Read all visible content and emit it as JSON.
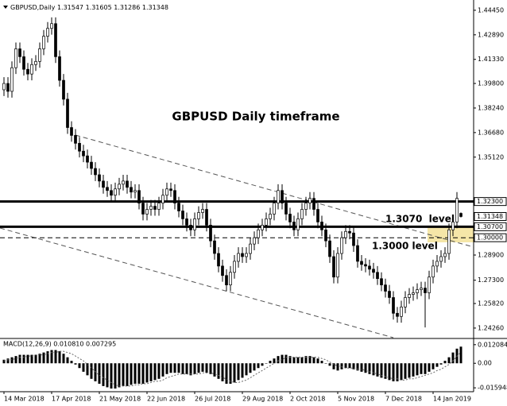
{
  "chart_data": {
    "type": "candlestick",
    "symbol": "GBPUSD,Daily",
    "annotations": [
      "GBPUSD Daily timeframe",
      "1.3070  level",
      "1.3000 level"
    ],
    "categories": [
      "14 Mar 2018",
      "17 Apr 2018",
      "21 May 2018",
      "22 Jun 2018",
      "26 Jul 2018",
      "29 Aug 2018",
      "2 Oct 2018",
      "5 Nov 2018",
      "7 Dec 2018",
      "14 Jan 2019"
    ],
    "ylim": [
      1.2365,
      1.4485
    ],
    "yticks": [
      {
        "value": 1.4445,
        "label": "1.44450"
      },
      {
        "value": 1.4289,
        "label": "1.42890"
      },
      {
        "value": 1.4133,
        "label": "1.41330"
      },
      {
        "value": 1.398,
        "label": "1.39800"
      },
      {
        "value": 1.3824,
        "label": "1.38240"
      },
      {
        "value": 1.3668,
        "label": "1.36680"
      },
      {
        "value": 1.3512,
        "label": "1.35120"
      },
      {
        "value": 1.289,
        "label": "1.28900"
      },
      {
        "value": 1.273,
        "label": "1.27300"
      },
      {
        "value": 1.2582,
        "label": "1.25820"
      },
      {
        "value": 1.2426,
        "label": "1.24260"
      }
    ],
    "levels": [
      {
        "value": 1.323,
        "label": "1.32300",
        "style": "solid"
      },
      {
        "value": 1.307,
        "label": "1.30700",
        "style": "solid"
      },
      {
        "value": 1.3,
        "label": "1.30000",
        "style": "dashed"
      }
    ],
    "up_color": "#ffffff",
    "down_color": "#000000",
    "ohlc": [
      [
        1.394,
        1.402,
        1.39,
        1.398
      ],
      [
        1.398,
        1.402,
        1.389,
        1.393
      ],
      [
        1.393,
        1.412,
        1.389,
        1.408
      ],
      [
        1.408,
        1.424,
        1.404,
        1.42
      ],
      [
        1.42,
        1.424,
        1.411,
        1.415
      ],
      [
        1.415,
        1.419,
        1.403,
        1.407
      ],
      [
        1.407,
        1.411,
        1.4,
        1.404
      ],
      [
        1.404,
        1.414,
        1.4,
        1.41
      ],
      [
        1.41,
        1.416,
        1.406,
        1.412
      ],
      [
        1.412,
        1.424,
        1.408,
        1.42
      ],
      [
        1.42,
        1.432,
        1.416,
        1.428
      ],
      [
        1.428,
        1.437,
        1.424,
        1.433
      ],
      [
        1.433,
        1.44,
        1.429,
        1.436
      ],
      [
        1.436,
        1.44,
        1.411,
        1.415
      ],
      [
        1.415,
        1.419,
        1.396,
        1.4
      ],
      [
        1.4,
        1.404,
        1.384,
        1.388
      ],
      [
        1.388,
        1.392,
        1.366,
        1.37
      ],
      [
        1.37,
        1.374,
        1.361,
        1.365
      ],
      [
        1.365,
        1.369,
        1.356,
        1.36
      ],
      [
        1.36,
        1.364,
        1.351,
        1.355
      ],
      [
        1.355,
        1.359,
        1.348,
        1.352
      ],
      [
        1.352,
        1.356,
        1.344,
        1.348
      ],
      [
        1.348,
        1.352,
        1.34,
        1.344
      ],
      [
        1.344,
        1.348,
        1.336,
        1.34
      ],
      [
        1.34,
        1.344,
        1.332,
        1.336
      ],
      [
        1.336,
        1.34,
        1.328,
        1.332
      ],
      [
        1.332,
        1.336,
        1.326,
        1.33
      ],
      [
        1.33,
        1.334,
        1.323,
        1.327
      ],
      [
        1.327,
        1.335,
        1.323,
        1.331
      ],
      [
        1.331,
        1.338,
        1.327,
        1.334
      ],
      [
        1.334,
        1.34,
        1.33,
        1.336
      ],
      [
        1.336,
        1.34,
        1.328,
        1.332
      ],
      [
        1.332,
        1.336,
        1.325,
        1.329
      ],
      [
        1.329,
        1.334,
        1.325,
        1.33
      ],
      [
        1.33,
        1.334,
        1.318,
        1.322
      ],
      [
        1.322,
        1.326,
        1.311,
        1.315
      ],
      [
        1.315,
        1.322,
        1.311,
        1.318
      ],
      [
        1.318,
        1.324,
        1.314,
        1.32
      ],
      [
        1.32,
        1.324,
        1.314,
        1.318
      ],
      [
        1.318,
        1.326,
        1.314,
        1.322
      ],
      [
        1.322,
        1.331,
        1.318,
        1.327
      ],
      [
        1.327,
        1.335,
        1.323,
        1.331
      ],
      [
        1.331,
        1.335,
        1.326,
        1.33
      ],
      [
        1.33,
        1.334,
        1.318,
        1.322
      ],
      [
        1.322,
        1.326,
        1.313,
        1.317
      ],
      [
        1.317,
        1.321,
        1.308,
        1.312
      ],
      [
        1.312,
        1.316,
        1.304,
        1.308
      ],
      [
        1.308,
        1.312,
        1.301,
        1.305
      ],
      [
        1.305,
        1.316,
        1.301,
        1.312
      ],
      [
        1.312,
        1.32,
        1.308,
        1.316
      ],
      [
        1.316,
        1.322,
        1.312,
        1.318
      ],
      [
        1.318,
        1.322,
        1.304,
        1.308
      ],
      [
        1.308,
        1.312,
        1.294,
        1.298
      ],
      [
        1.298,
        1.302,
        1.286,
        1.29
      ],
      [
        1.29,
        1.294,
        1.278,
        1.282
      ],
      [
        1.282,
        1.286,
        1.272,
        1.276
      ],
      [
        1.276,
        1.28,
        1.266,
        1.27
      ],
      [
        1.27,
        1.282,
        1.266,
        1.278
      ],
      [
        1.278,
        1.289,
        1.274,
        1.285
      ],
      [
        1.285,
        1.294,
        1.281,
        1.29
      ],
      [
        1.29,
        1.294,
        1.284,
        1.288
      ],
      [
        1.288,
        1.294,
        1.284,
        1.29
      ],
      [
        1.29,
        1.3,
        1.286,
        1.296
      ],
      [
        1.296,
        1.304,
        1.292,
        1.3
      ],
      [
        1.3,
        1.309,
        1.296,
        1.305
      ],
      [
        1.305,
        1.312,
        1.301,
        1.308
      ],
      [
        1.308,
        1.316,
        1.304,
        1.312
      ],
      [
        1.312,
        1.319,
        1.308,
        1.315
      ],
      [
        1.315,
        1.326,
        1.311,
        1.322
      ],
      [
        1.322,
        1.334,
        1.318,
        1.33
      ],
      [
        1.33,
        1.334,
        1.318,
        1.322
      ],
      [
        1.322,
        1.326,
        1.311,
        1.315
      ],
      [
        1.315,
        1.319,
        1.306,
        1.31
      ],
      [
        1.31,
        1.314,
        1.301,
        1.305
      ],
      [
        1.305,
        1.316,
        1.301,
        1.312
      ],
      [
        1.312,
        1.322,
        1.308,
        1.318
      ],
      [
        1.318,
        1.326,
        1.314,
        1.322
      ],
      [
        1.322,
        1.329,
        1.318,
        1.325
      ],
      [
        1.325,
        1.329,
        1.314,
        1.318
      ],
      [
        1.318,
        1.322,
        1.306,
        1.31
      ],
      [
        1.31,
        1.314,
        1.301,
        1.305
      ],
      [
        1.305,
        1.309,
        1.294,
        1.298
      ],
      [
        1.298,
        1.302,
        1.284,
        1.288
      ],
      [
        1.288,
        1.292,
        1.271,
        1.275
      ],
      [
        1.275,
        1.294,
        1.271,
        1.29
      ],
      [
        1.29,
        1.304,
        1.286,
        1.3
      ],
      [
        1.3,
        1.308,
        1.296,
        1.304
      ],
      [
        1.304,
        1.308,
        1.299,
        1.303
      ],
      [
        1.303,
        1.307,
        1.291,
        1.295
      ],
      [
        1.295,
        1.299,
        1.281,
        1.285
      ],
      [
        1.285,
        1.289,
        1.279,
        1.283
      ],
      [
        1.283,
        1.287,
        1.278,
        1.282
      ],
      [
        1.282,
        1.286,
        1.276,
        1.28
      ],
      [
        1.28,
        1.284,
        1.274,
        1.278
      ],
      [
        1.278,
        1.282,
        1.27,
        1.274
      ],
      [
        1.274,
        1.278,
        1.266,
        1.27
      ],
      [
        1.27,
        1.274,
        1.262,
        1.266
      ],
      [
        1.266,
        1.27,
        1.258,
        1.262
      ],
      [
        1.262,
        1.266,
        1.248,
        1.252
      ],
      [
        1.252,
        1.256,
        1.246,
        1.25
      ],
      [
        1.25,
        1.26,
        1.246,
        1.256
      ],
      [
        1.256,
        1.266,
        1.252,
        1.262
      ],
      [
        1.262,
        1.268,
        1.258,
        1.264
      ],
      [
        1.264,
        1.269,
        1.26,
        1.265
      ],
      [
        1.265,
        1.271,
        1.261,
        1.267
      ],
      [
        1.267,
        1.272,
        1.263,
        1.268
      ],
      [
        1.268,
        1.272,
        1.243,
        1.265
      ],
      [
        1.265,
        1.279,
        1.261,
        1.275
      ],
      [
        1.275,
        1.286,
        1.271,
        1.282
      ],
      [
        1.282,
        1.289,
        1.278,
        1.285
      ],
      [
        1.285,
        1.292,
        1.281,
        1.288
      ],
      [
        1.288,
        1.294,
        1.284,
        1.29
      ],
      [
        1.29,
        1.309,
        1.286,
        1.305
      ],
      [
        1.305,
        1.314,
        1.301,
        1.31
      ],
      [
        1.31,
        1.329,
        1.306,
        1.325
      ],
      [
        1.31547,
        1.31605,
        1.31286,
        1.31348
      ]
    ],
    "macd": {
      "label": "MACD(12,26,9) 0.010810 0.007295",
      "ylim": [
        -0.01795,
        0.01509
      ],
      "yticks": [
        0.012084,
        {
          "value": 0,
          "label": "0.00"
        },
        -0.015948
      ],
      "histogram": [
        0.0023,
        0.0031,
        0.0039,
        0.0047,
        0.0055,
        0.0055,
        0.0055,
        0.0055,
        0.0055,
        0.0062,
        0.007,
        0.0078,
        0.0086,
        0.0086,
        0.0078,
        0.0062,
        0.0039,
        0.0016,
        -0.0008,
        -0.0031,
        -0.0055,
        -0.0078,
        -0.0101,
        -0.0117,
        -0.0133,
        -0.0148,
        -0.0156,
        -0.0164,
        -0.0164,
        -0.0156,
        -0.0148,
        -0.0148,
        -0.014,
        -0.0133,
        -0.0133,
        -0.0133,
        -0.0125,
        -0.0117,
        -0.0109,
        -0.0101,
        -0.0086,
        -0.007,
        -0.0062,
        -0.0062,
        -0.0062,
        -0.007,
        -0.007,
        -0.0078,
        -0.007,
        -0.0062,
        -0.0055,
        -0.0062,
        -0.007,
        -0.0086,
        -0.0101,
        -0.0117,
        -0.0133,
        -0.0133,
        -0.0125,
        -0.0109,
        -0.0094,
        -0.0078,
        -0.0062,
        -0.0047,
        -0.0031,
        -0.0016,
        0,
        0.0016,
        0.0031,
        0.0047,
        0.0055,
        0.0055,
        0.0047,
        0.0039,
        0.0039,
        0.0039,
        0.0047,
        0.0047,
        0.0039,
        0.0031,
        0.0016,
        0,
        -0.0016,
        -0.0039,
        -0.0047,
        -0.0039,
        -0.0031,
        -0.0031,
        -0.0039,
        -0.0047,
        -0.0055,
        -0.0062,
        -0.007,
        -0.0078,
        -0.0086,
        -0.0094,
        -0.0101,
        -0.0109,
        -0.0117,
        -0.0117,
        -0.0109,
        -0.0101,
        -0.0094,
        -0.0086,
        -0.0078,
        -0.007,
        -0.007,
        -0.0055,
        -0.0039,
        -0.0023,
        -0.0008,
        0.0016,
        0.0039,
        0.007,
        0.0095,
        0.01081
      ],
      "signal": [
        0.0016,
        0.0023,
        0.0023,
        0.0031,
        0.0039,
        0.0039,
        0.0047,
        0.0047,
        0.0055,
        0.0055,
        0.0055,
        0.0062,
        0.007,
        0.007,
        0.0078,
        0.0078,
        0.007,
        0.0062,
        0.0047,
        0.0031,
        0.0016,
        -0.0008,
        -0.0031,
        -0.0055,
        -0.0078,
        -0.0094,
        -0.0109,
        -0.0125,
        -0.014,
        -0.0148,
        -0.0148,
        -0.0148,
        -0.0148,
        -0.014,
        -0.014,
        -0.0133,
        -0.0133,
        -0.0125,
        -0.0117,
        -0.0117,
        -0.0109,
        -0.0094,
        -0.0086,
        -0.0078,
        -0.007,
        -0.007,
        -0.007,
        -0.007,
        -0.007,
        -0.007,
        -0.0062,
        -0.0062,
        -0.0062,
        -0.007,
        -0.0078,
        -0.0094,
        -0.0101,
        -0.0117,
        -0.0125,
        -0.0125,
        -0.0117,
        -0.0109,
        -0.0094,
        -0.0078,
        -0.0062,
        -0.0047,
        -0.0031,
        -0.0016,
        0,
        0.0016,
        0.0023,
        0.0039,
        0.0039,
        0.0039,
        0.0039,
        0.0039,
        0.0039,
        0.0039,
        0.0039,
        0.0039,
        0.0031,
        0.0023,
        0.0008,
        -0.0008,
        -0.0016,
        -0.0023,
        -0.0031,
        -0.0031,
        -0.0031,
        -0.0039,
        -0.0039,
        -0.0047,
        -0.0055,
        -0.0062,
        -0.007,
        -0.0078,
        -0.0086,
        -0.0094,
        -0.0101,
        -0.0101,
        -0.0109,
        -0.0109,
        -0.0101,
        -0.0101,
        -0.0094,
        -0.0086,
        -0.0078,
        -0.007,
        -0.0062,
        -0.0047,
        -0.0039,
        -0.0023,
        -0.0008,
        0.0016,
        0.0045,
        0.007295
      ]
    }
  }
}
